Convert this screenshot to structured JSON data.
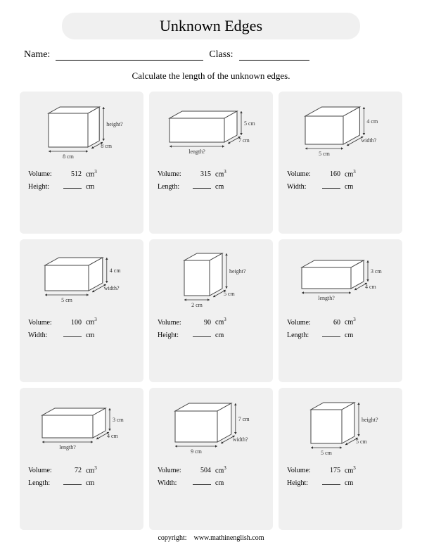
{
  "title": "Unknown Edges",
  "name_label": "Name:",
  "class_label": "Class:",
  "instruction": "Calculate the length of the unknown edges.",
  "volume_label": "Volume:",
  "volume_unit": "cm",
  "volume_exp": "3",
  "dim_unit": "cm",
  "problems": [
    {
      "volume": "512",
      "unknown_label": "Height:",
      "bottom_label": "8 cm",
      "depth_label": "8 cm",
      "side_label": "height?",
      "show_bottom": true,
      "show_depth": true,
      "show_side": true,
      "side_is_unknown": true,
      "bottom_is_unknown": false,
      "depth_is_unknown": false,
      "w": 56,
      "h": 48,
      "d": 18
    },
    {
      "volume": "315",
      "unknown_label": "Length:",
      "bottom_label": "length?",
      "depth_label": "7 cm",
      "side_label": "5 cm",
      "show_bottom": true,
      "show_depth": true,
      "show_side": true,
      "side_is_unknown": false,
      "bottom_is_unknown": true,
      "depth_is_unknown": false,
      "w": 78,
      "h": 34,
      "d": 20
    },
    {
      "volume": "160",
      "unknown_label": "Width:",
      "bottom_label": "5 cm",
      "depth_label": "width?",
      "side_label": "4 cm",
      "show_bottom": true,
      "show_depth": true,
      "show_side": true,
      "side_is_unknown": false,
      "bottom_is_unknown": false,
      "depth_is_unknown": true,
      "w": 54,
      "h": 40,
      "d": 26
    },
    {
      "volume": "100",
      "unknown_label": "Width:",
      "bottom_label": "5 cm",
      "depth_label": "width?",
      "side_label": "4 cm",
      "show_bottom": true,
      "show_depth": true,
      "show_side": true,
      "side_is_unknown": false,
      "bottom_is_unknown": false,
      "depth_is_unknown": true,
      "w": 62,
      "h": 36,
      "d": 22
    },
    {
      "volume": "90",
      "unknown_label": "Height:",
      "bottom_label": "2 cm",
      "depth_label": "5 cm",
      "side_label": "height?",
      "show_bottom": true,
      "show_depth": true,
      "show_side": true,
      "side_is_unknown": true,
      "bottom_is_unknown": false,
      "depth_is_unknown": false,
      "w": 36,
      "h": 50,
      "d": 20
    },
    {
      "volume": "60",
      "unknown_label": "Length:",
      "bottom_label": "length?",
      "depth_label": "4 cm",
      "side_label": "3 cm",
      "show_bottom": true,
      "show_depth": true,
      "show_side": true,
      "side_is_unknown": false,
      "bottom_is_unknown": true,
      "depth_is_unknown": false,
      "w": 70,
      "h": 30,
      "d": 20
    },
    {
      "volume": "72",
      "unknown_label": "Length:",
      "bottom_label": "length?",
      "depth_label": "4 cm",
      "side_label": "3 cm",
      "show_bottom": true,
      "show_depth": true,
      "show_side": true,
      "side_is_unknown": false,
      "bottom_is_unknown": true,
      "depth_is_unknown": false,
      "w": 72,
      "h": 32,
      "d": 20
    },
    {
      "volume": "504",
      "unknown_label": "Width:",
      "bottom_label": "9 cm",
      "depth_label": "width?",
      "side_label": "7 cm",
      "show_bottom": true,
      "show_depth": true,
      "show_side": true,
      "side_is_unknown": false,
      "bottom_is_unknown": false,
      "depth_is_unknown": true,
      "w": 60,
      "h": 44,
      "d": 22
    },
    {
      "volume": "175",
      "unknown_label": "Height:",
      "bottom_label": "5 cm",
      "depth_label": "5 cm",
      "side_label": "height?",
      "show_bottom": true,
      "show_depth": true,
      "show_side": true,
      "side_is_unknown": true,
      "bottom_is_unknown": false,
      "depth_is_unknown": false,
      "w": 44,
      "h": 48,
      "d": 20
    }
  ],
  "copyright_label": "copyright:",
  "copyright_url": "www.mathinenglish.com"
}
